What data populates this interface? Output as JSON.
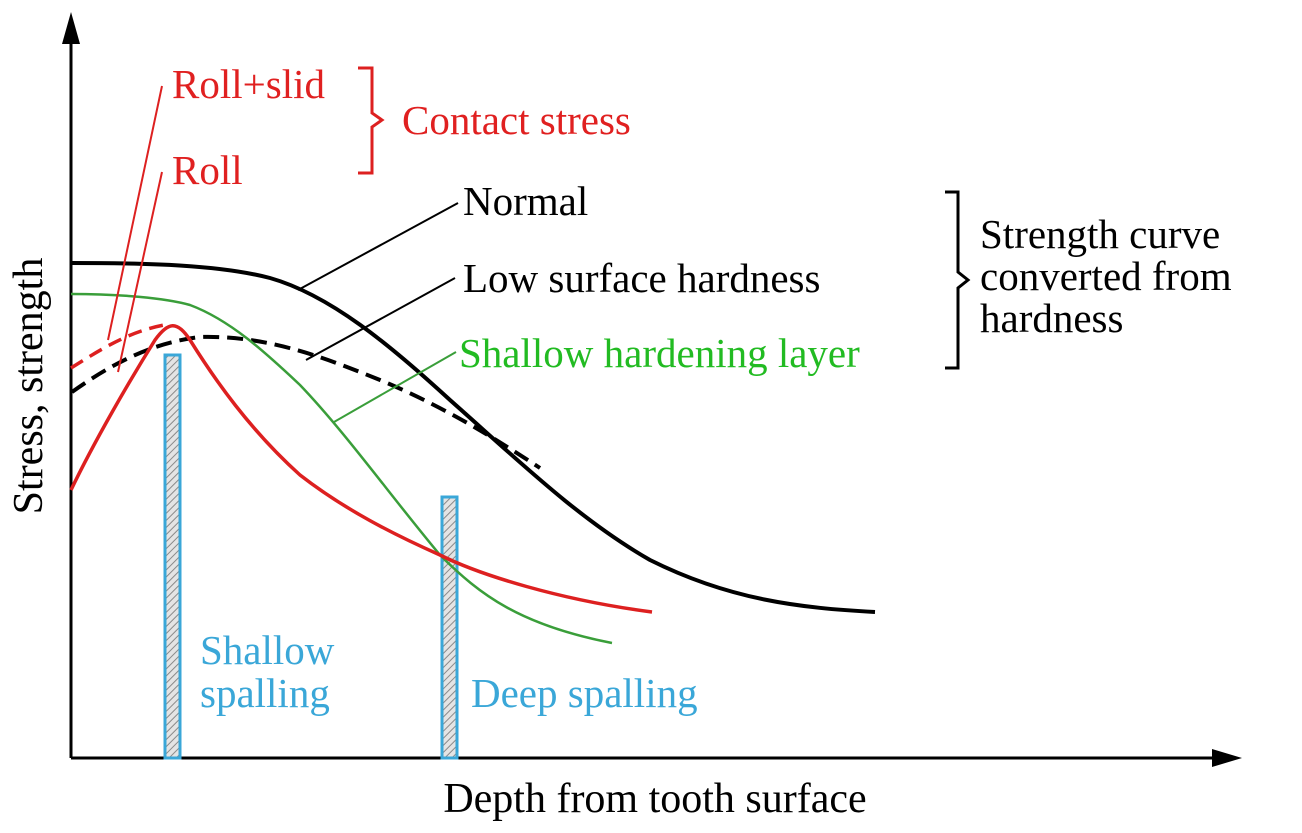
{
  "chart_data": {
    "type": "line",
    "xlabel": "Depth from tooth surface",
    "ylabel": "Stress, strength",
    "contact_stress": {
      "group_label": "Contact stress",
      "items": [
        {
          "name": "Roll+slid",
          "color": "#e02020"
        },
        {
          "name": "Roll",
          "color": "#e02020"
        }
      ]
    },
    "strength_curves": {
      "group_label": [
        "Strength curve",
        "converted from",
        "hardness"
      ],
      "items": [
        {
          "name": "Normal",
          "color": "#000000"
        },
        {
          "name": "Low surface hardness",
          "color": "#000000"
        },
        {
          "name": "Shallow hardening layer",
          "color": "#22bb22"
        }
      ]
    },
    "spalling": {
      "color": "#3aa7d8",
      "shallow": [
        "Shallow",
        "spalling"
      ],
      "deep": "Deep spalling"
    }
  }
}
